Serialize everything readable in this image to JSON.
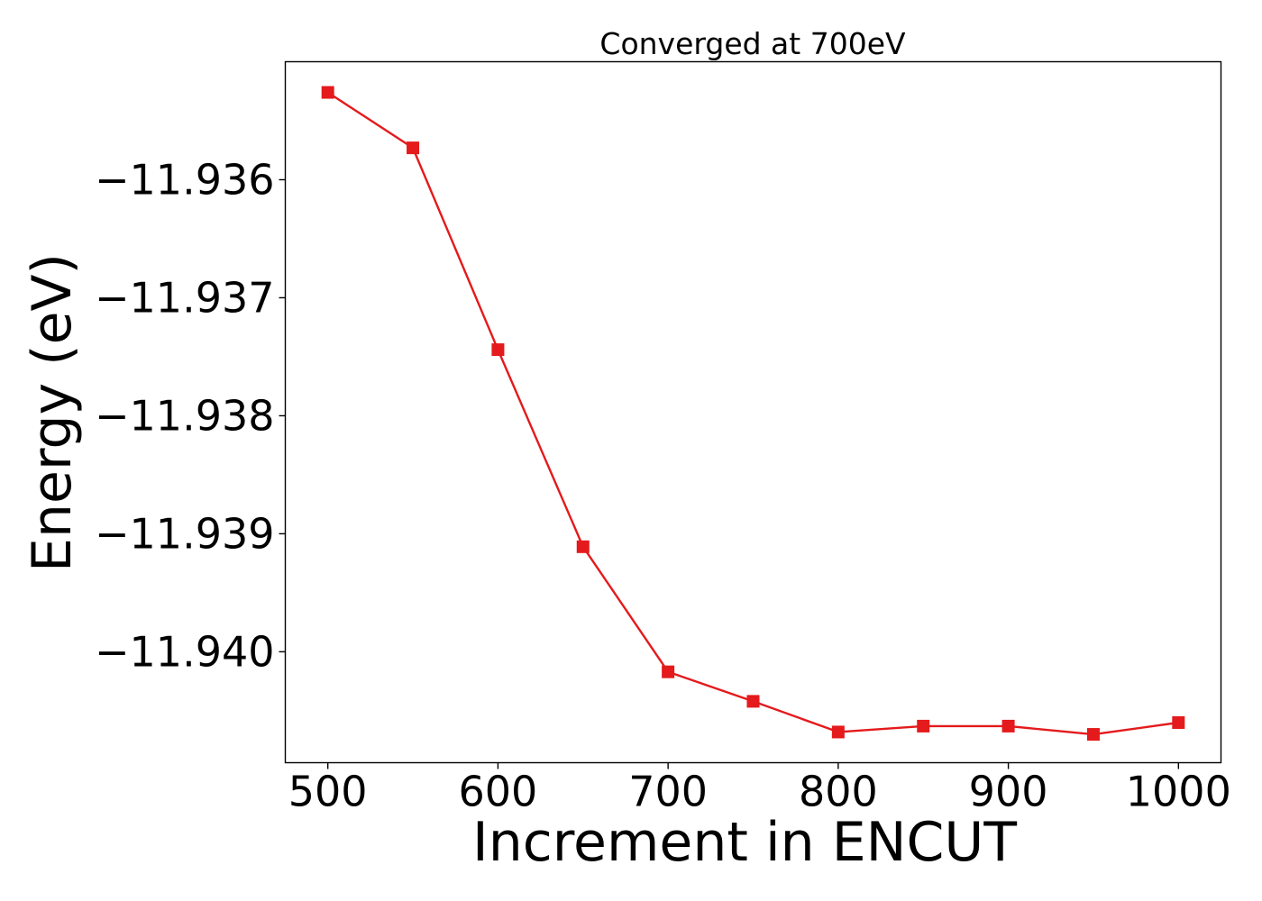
{
  "chart_data": {
    "type": "line",
    "title": "Converged at 700eV",
    "xlabel": "Increment in ENCUT",
    "ylabel": "Energy (eV)",
    "x": [
      500,
      550,
      600,
      650,
      700,
      750,
      800,
      850,
      900,
      950,
      1000
    ],
    "series": [
      {
        "values": [
          -11.93526,
          -11.93573,
          -11.93744,
          -11.93911,
          -11.94017,
          -11.94042,
          -11.94068,
          -11.94063,
          -11.94063,
          -11.9407,
          -11.9406
        ],
        "color": "#e41a1c",
        "marker": "square"
      }
    ],
    "xlim": [
      475,
      1025
    ],
    "ylim": [
      -11.94094,
      -11.935
    ],
    "xticks": [
      500,
      600,
      700,
      800,
      900,
      1000
    ],
    "xtick_labels": [
      "500",
      "600",
      "700",
      "800",
      "900",
      "1000"
    ],
    "yticks": [
      -11.936,
      -11.937,
      -11.938,
      -11.939,
      -11.94
    ],
    "ytick_labels": [
      "−11.936",
      "−11.937",
      "−11.938",
      "−11.939",
      "−11.940"
    ],
    "grid": false,
    "legend": "none"
  }
}
